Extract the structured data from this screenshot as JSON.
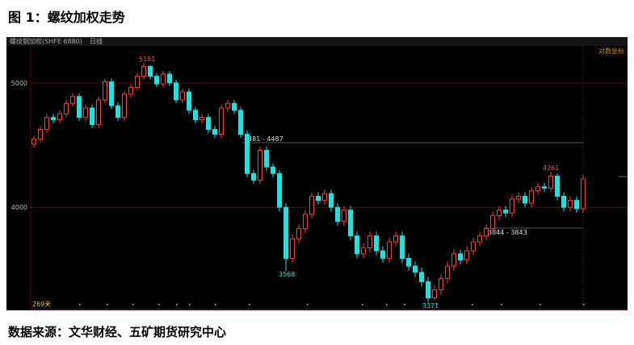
{
  "header": {
    "title": "图 1：螺纹加权走势"
  },
  "footer": {
    "source": "数据来源：文华财经、五矿期货研究中心"
  },
  "chart_data": {
    "type": "candlestick",
    "instrument": "螺纹钢加权(SHFE 6880)",
    "period": "日线",
    "scale_label": "对数坐标",
    "day_count": "269天",
    "log_scale": true,
    "ylim": [
      3330,
      5335
    ],
    "yticks": [
      4000,
      5000
    ],
    "up_color": "#ff3c3c",
    "down_color": "#19e3e3",
    "grid_color": "#5a0a0a",
    "annotations": [
      "5181",
      "3568",
      "3371",
      "4261",
      "4481 - 4487",
      "3844 - 3843"
    ],
    "open": [
      4480,
      4520,
      4600,
      4700,
      4680,
      4730,
      4820,
      4880,
      4700,
      4780,
      4640,
      4850,
      5010,
      4800,
      4700,
      4900,
      4960,
      5060,
      5150,
      5060,
      4990,
      5080,
      5000,
      4850,
      4920,
      4760,
      4680,
      4700,
      4600,
      4560,
      4780,
      4820,
      4760,
      4560,
      4250,
      4200,
      4430,
      4300,
      4250,
      4000,
      3650,
      3780,
      3850,
      3950,
      4080,
      4050,
      4100,
      4000,
      3900,
      3980,
      3800,
      3680,
      3720,
      3800,
      3700,
      3650,
      3760,
      3800,
      3650,
      3600,
      3560,
      3500,
      3400,
      3450,
      3520,
      3600,
      3680,
      3640,
      3700,
      3760,
      3800,
      3850,
      3940,
      3980,
      3960,
      4060,
      4080,
      4030,
      4120,
      4150,
      4140,
      4230,
      4080,
      4000,
      4050,
      3990
    ],
    "high": [
      4550,
      4630,
      4730,
      4730,
      4760,
      4850,
      4910,
      4910,
      4810,
      4810,
      4880,
      5040,
      5040,
      4830,
      4930,
      4990,
      5090,
      5181,
      5160,
      5090,
      5110,
      5110,
      5030,
      4950,
      4950,
      4790,
      4730,
      4730,
      4630,
      4810,
      4850,
      4850,
      4790,
      4590,
      4280,
      4460,
      4460,
      4330,
      4280,
      4030,
      3810,
      3880,
      3980,
      4110,
      4110,
      4130,
      4130,
      4030,
      4010,
      4010,
      3830,
      3750,
      3830,
      3830,
      3730,
      3790,
      3830,
      3830,
      3680,
      3630,
      3590,
      3530,
      3480,
      3550,
      3630,
      3710,
      3710,
      3730,
      3790,
      3830,
      3880,
      3970,
      4010,
      4010,
      4090,
      4110,
      4110,
      4150,
      4180,
      4180,
      4261,
      4250,
      4110,
      4080,
      4080,
      4240
    ],
    "low": [
      4450,
      4490,
      4570,
      4650,
      4650,
      4700,
      4790,
      4670,
      4670,
      4610,
      4610,
      4820,
      4770,
      4670,
      4670,
      4870,
      4930,
      5030,
      5030,
      4960,
      4960,
      4970,
      4820,
      4820,
      4730,
      4650,
      4650,
      4570,
      4530,
      4530,
      4750,
      4730,
      4530,
      4220,
      4170,
      4170,
      4270,
      4220,
      3970,
      3568,
      3620,
      3750,
      3820,
      3920,
      4020,
      4020,
      3970,
      3870,
      3870,
      3770,
      3650,
      3650,
      3690,
      3670,
      3620,
      3620,
      3730,
      3620,
      3570,
      3530,
      3470,
      3371,
      3390,
      3420,
      3490,
      3570,
      3610,
      3610,
      3670,
      3730,
      3770,
      3820,
      3910,
      3930,
      3930,
      4030,
      4000,
      4000,
      4090,
      4110,
      4110,
      4050,
      3970,
      3970,
      3960,
      3960
    ],
    "close": [
      4520,
      4600,
      4700,
      4680,
      4730,
      4820,
      4880,
      4700,
      4780,
      4640,
      4850,
      5010,
      4800,
      4700,
      4900,
      4960,
      5060,
      5150,
      5060,
      4990,
      5080,
      5000,
      4850,
      4920,
      4760,
      4680,
      4700,
      4600,
      4560,
      4780,
      4820,
      4760,
      4560,
      4250,
      4200,
      4430,
      4300,
      4250,
      4000,
      3650,
      3780,
      3850,
      3950,
      4080,
      4050,
      4100,
      4000,
      3900,
      3980,
      3800,
      3680,
      3720,
      3800,
      3700,
      3650,
      3760,
      3800,
      3650,
      3600,
      3560,
      3500,
      3400,
      3450,
      3520,
      3600,
      3680,
      3640,
      3700,
      3760,
      3800,
      3850,
      3940,
      3980,
      3960,
      4060,
      4080,
      4030,
      4120,
      4150,
      4140,
      4230,
      4080,
      4000,
      4050,
      3990,
      4210
    ]
  }
}
